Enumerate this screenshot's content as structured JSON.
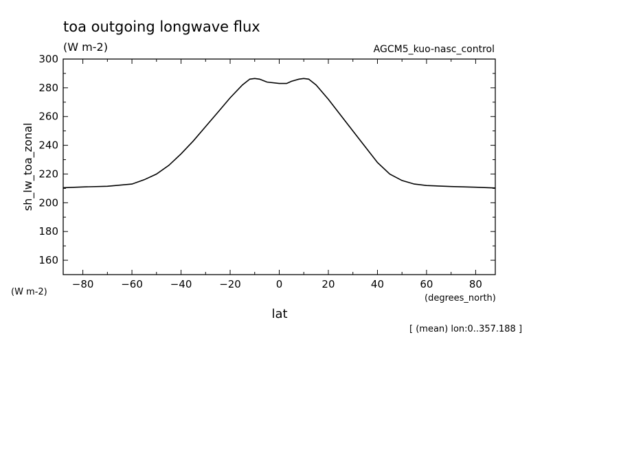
{
  "chart_data": {
    "type": "line",
    "title": "toa outgoing longwave flux",
    "units": "(W m-2)",
    "experiment": "AGCM5_kuo-nasc_control",
    "ylabel": "sh_lw_toa_zonal",
    "yunits": "(W m-2)",
    "xlabel": "lat",
    "xunits": "(degrees_north)",
    "footnote": "[ (mean) lon:0..357.188 ]",
    "xlim": [
      -88,
      88
    ],
    "ylim": [
      150,
      300
    ],
    "xticks": [
      -80,
      -60,
      -40,
      -20,
      0,
      20,
      40,
      60,
      80
    ],
    "xtick_labels": [
      "-80",
      "-60",
      "-40",
      "-20",
      "0",
      "20",
      "40",
      "60",
      "80"
    ],
    "yticks": [
      160,
      180,
      200,
      220,
      240,
      260,
      280,
      300
    ],
    "ytick_labels": [
      "160",
      "180",
      "200",
      "220",
      "240",
      "260",
      "280",
      "300"
    ],
    "series": [
      {
        "x": [
          -88,
          -80,
          -70,
          -60,
          -55,
          -50,
          -45,
          -40,
          -35,
          -30,
          -25,
          -20,
          -15,
          -12,
          -10,
          -8,
          -5,
          0,
          3,
          5,
          8,
          10,
          12,
          15,
          20,
          25,
          30,
          35,
          40,
          45,
          50,
          55,
          60,
          70,
          80,
          88
        ],
        "y": [
          210.5,
          211,
          211.5,
          213,
          216,
          220,
          226,
          234,
          243,
          253,
          263,
          273,
          282,
          286,
          286.5,
          286,
          284,
          283,
          283,
          284.5,
          286,
          286.5,
          286,
          282,
          272,
          261,
          250,
          239,
          228,
          220,
          215.5,
          213,
          212,
          211.3,
          210.8,
          210.3
        ]
      }
    ]
  }
}
